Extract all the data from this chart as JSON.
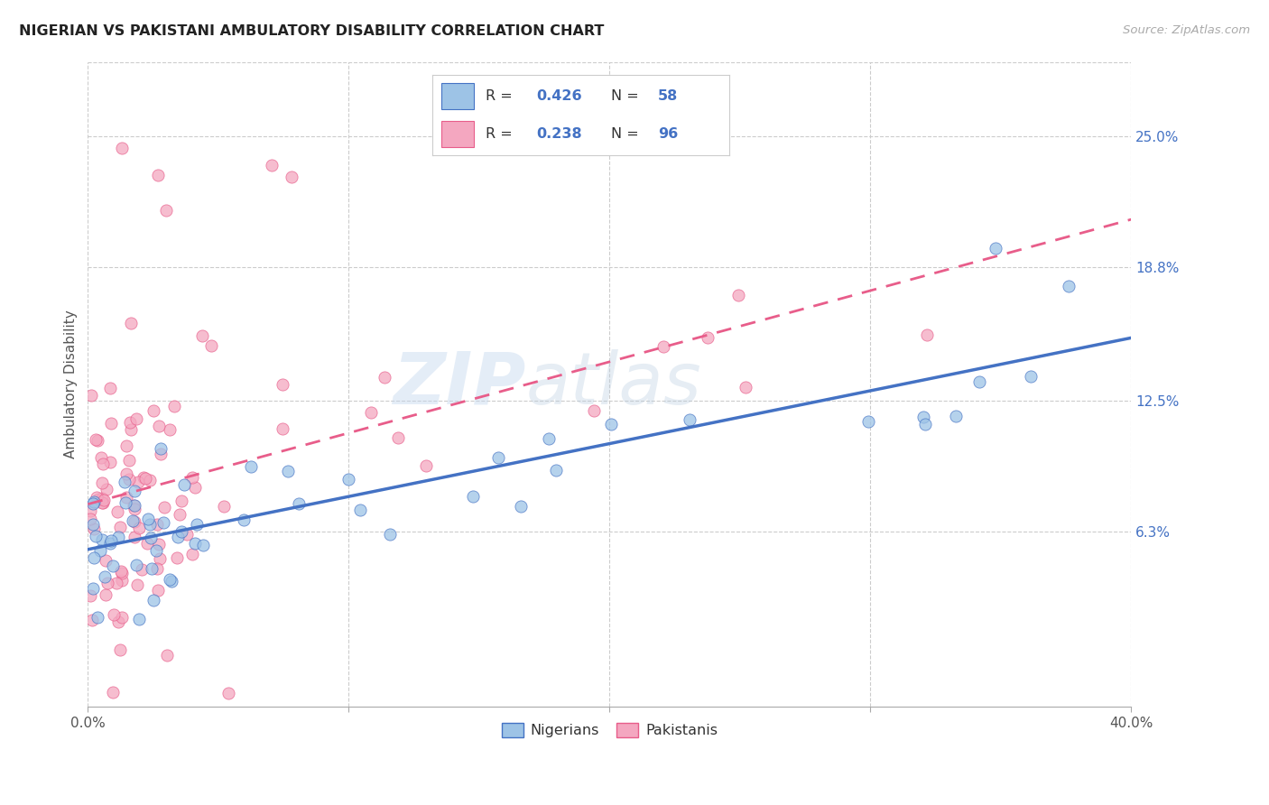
{
  "title": "NIGERIAN VS PAKISTANI AMBULATORY DISABILITY CORRELATION CHART",
  "source": "Source: ZipAtlas.com",
  "ylabel": "Ambulatory Disability",
  "watermark": "ZIPatlas",
  "xmin": 0.0,
  "xmax": 0.4,
  "ymin": -0.02,
  "ymax": 0.285,
  "yticks": [
    0.063,
    0.125,
    0.188,
    0.25
  ],
  "ytick_labels": [
    "6.3%",
    "12.5%",
    "18.8%",
    "25.0%"
  ],
  "xticks": [
    0.0,
    0.1,
    0.2,
    0.3,
    0.4
  ],
  "xtick_labels": [
    "0.0%",
    "",
    "",
    "",
    "40.0%"
  ],
  "nigerian_line_color": "#4472C4",
  "pakistani_line_color": "#E85D8A",
  "nigerian_scatter_color": "#9DC3E6",
  "pakistani_scatter_color": "#F4A7C0",
  "nigerian_R": 0.426,
  "nigerian_N": 58,
  "pakistani_R": 0.238,
  "pakistani_N": 96,
  "legend_blue_text": "#4472C4",
  "grid_color": "#CCCCCC",
  "title_color": "#222222",
  "axis_label_color": "#555555",
  "tick_color": "#4472C4"
}
